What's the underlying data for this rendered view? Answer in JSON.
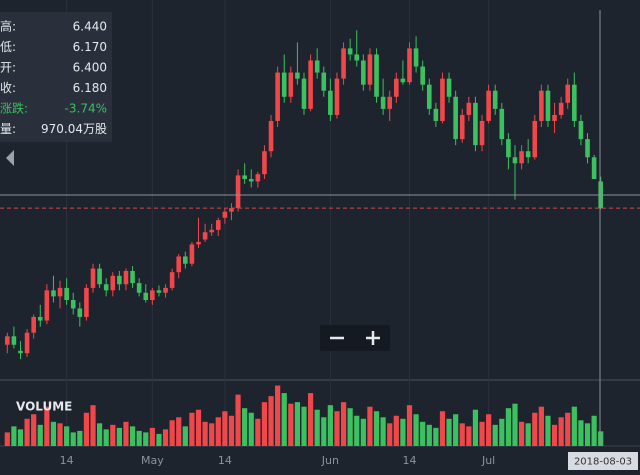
{
  "chart_data": {
    "type": "candlestick",
    "up_color": "#f0474a",
    "down_color": "#3bc15f",
    "ylim": [
      4.8,
      7.9
    ],
    "y2lim": [
      0,
      4300
    ],
    "volume_label": "VOLUME",
    "cursor_date": "2018-08-03",
    "categories": [
      null,
      null,
      null,
      null,
      null,
      null,
      null,
      null,
      null,
      "14",
      null,
      null,
      null,
      null,
      null,
      null,
      null,
      null,
      null,
      null,
      null,
      null,
      "May",
      null,
      null,
      null,
      null,
      null,
      null,
      null,
      null,
      null,
      null,
      "14",
      null,
      null,
      null,
      null,
      null,
      null,
      null,
      null,
      null,
      null,
      null,
      null,
      null,
      null,
      null,
      "Jun",
      null,
      null,
      null,
      null,
      null,
      null,
      null,
      null,
      null,
      null,
      null,
      "14",
      null,
      null,
      null,
      null,
      null,
      null,
      null,
      null,
      null,
      null,
      null,
      "Jul",
      null,
      null,
      null,
      null,
      null,
      null,
      null,
      null,
      null,
      null,
      null,
      null,
      null,
      null,
      null,
      null,
      null
    ],
    "open": [
      5.05,
      5.12,
      5.0,
      4.98,
      5.15,
      5.28,
      5.25,
      5.5,
      5.45,
      5.52,
      5.42,
      5.35,
      5.28,
      5.52,
      5.68,
      5.55,
      5.5,
      5.62,
      5.55,
      5.66,
      5.56,
      5.48,
      5.42,
      5.5,
      5.48,
      5.52,
      5.65,
      5.78,
      5.72,
      5.88,
      5.92,
      5.98,
      6.0,
      6.1,
      6.15,
      6.18,
      6.45,
      6.42,
      6.4,
      6.46,
      6.65,
      6.9,
      7.3,
      7.1,
      7.3,
      7.25,
      7.0,
      7.4,
      7.3,
      7.15,
      6.95,
      7.25,
      7.5,
      7.45,
      7.4,
      7.2,
      7.45,
      7.1,
      7.0,
      7.1,
      7.25,
      7.22,
      7.5,
      7.35,
      7.2,
      7.0,
      6.9,
      7.25,
      7.1,
      6.75,
      6.95,
      7.05,
      6.7,
      6.9,
      7.15,
      7.0,
      6.75,
      6.6,
      6.55,
      6.65,
      6.6,
      6.9,
      7.15,
      6.9,
      6.95,
      7.05,
      7.2,
      6.9,
      6.75,
      6.6,
      6.4
    ],
    "high": [
      5.15,
      5.2,
      5.08,
      5.18,
      5.3,
      5.38,
      5.55,
      5.62,
      5.58,
      5.6,
      5.48,
      5.4,
      5.55,
      5.72,
      5.72,
      5.6,
      5.65,
      5.66,
      5.68,
      5.7,
      5.6,
      5.55,
      5.52,
      5.54,
      5.55,
      5.68,
      5.8,
      5.82,
      5.9,
      6.1,
      6.05,
      6.05,
      6.1,
      6.18,
      6.22,
      6.5,
      6.55,
      6.5,
      6.48,
      6.7,
      6.95,
      7.35,
      7.45,
      7.35,
      7.55,
      7.3,
      7.45,
      7.5,
      7.35,
      7.25,
      7.3,
      7.55,
      7.58,
      7.65,
      7.45,
      7.5,
      7.5,
      7.25,
      7.15,
      7.3,
      7.4,
      7.55,
      7.6,
      7.4,
      7.25,
      7.05,
      7.3,
      7.3,
      7.15,
      7.0,
      7.1,
      7.1,
      6.95,
      7.2,
      7.2,
      7.05,
      6.8,
      6.7,
      6.7,
      6.75,
      6.95,
      7.2,
      7.2,
      7.05,
      7.1,
      7.25,
      7.3,
      6.95,
      6.8,
      6.62,
      6.44
    ],
    "low": [
      4.98,
      5.02,
      4.93,
      4.95,
      5.1,
      5.2,
      5.22,
      5.4,
      5.35,
      5.38,
      5.3,
      5.2,
      5.25,
      5.48,
      5.52,
      5.45,
      5.45,
      5.5,
      5.5,
      5.52,
      5.45,
      5.4,
      5.38,
      5.45,
      5.44,
      5.5,
      5.6,
      5.68,
      5.7,
      5.85,
      5.9,
      5.95,
      5.95,
      6.05,
      6.08,
      6.15,
      6.38,
      6.35,
      6.35,
      6.42,
      6.6,
      6.85,
      7.05,
      7.05,
      7.2,
      6.95,
      6.98,
      7.25,
      7.1,
      6.9,
      6.92,
      7.2,
      7.4,
      7.35,
      7.15,
      7.15,
      7.05,
      6.95,
      6.9,
      7.05,
      7.2,
      7.2,
      7.3,
      7.15,
      6.95,
      6.85,
      6.88,
      7.05,
      6.7,
      6.72,
      6.9,
      6.65,
      6.65,
      6.88,
      6.95,
      6.7,
      6.5,
      6.25,
      6.5,
      6.55,
      6.58,
      6.85,
      6.85,
      6.8,
      6.92,
      7.0,
      6.85,
      6.7,
      6.55,
      6.42,
      6.17
    ],
    "close": [
      5.12,
      5.05,
      4.98,
      5.15,
      5.28,
      5.25,
      5.5,
      5.45,
      5.52,
      5.42,
      5.35,
      5.28,
      5.52,
      5.68,
      5.55,
      5.5,
      5.62,
      5.55,
      5.66,
      5.56,
      5.48,
      5.42,
      5.5,
      5.48,
      5.52,
      5.65,
      5.78,
      5.72,
      5.88,
      5.9,
      5.98,
      6.0,
      6.08,
      6.15,
      6.18,
      6.45,
      6.42,
      6.4,
      6.46,
      6.65,
      6.9,
      7.3,
      7.1,
      7.3,
      7.25,
      7.0,
      7.4,
      7.3,
      7.15,
      6.95,
      7.25,
      7.5,
      7.45,
      7.4,
      7.2,
      7.45,
      7.1,
      7.0,
      7.1,
      7.25,
      7.22,
      7.5,
      7.35,
      7.2,
      7.0,
      6.9,
      7.25,
      7.1,
      6.75,
      6.95,
      7.05,
      6.7,
      6.9,
      7.15,
      7.0,
      6.75,
      6.6,
      6.55,
      6.65,
      6.6,
      6.9,
      7.15,
      6.9,
      6.95,
      7.05,
      7.2,
      6.9,
      6.75,
      6.6,
      6.42,
      6.18
    ],
    "volume": [
      900,
      1300,
      1100,
      1800,
      2100,
      1400,
      2600,
      1600,
      1500,
      1300,
      900,
      1000,
      2200,
      2700,
      1500,
      1100,
      1400,
      1200,
      1600,
      1300,
      1000,
      900,
      1200,
      800,
      1100,
      1700,
      1900,
      1300,
      2200,
      2400,
      1600,
      1500,
      1900,
      2300,
      2000,
      3400,
      2500,
      2200,
      1800,
      2900,
      3300,
      4000,
      3500,
      2800,
      2900,
      2600,
      3500,
      2400,
      1900,
      2700,
      2300,
      2900,
      2500,
      2000,
      1800,
      2600,
      2300,
      1900,
      1500,
      2000,
      1800,
      2700,
      2100,
      1600,
      1400,
      1200,
      2300,
      1800,
      2100,
      1500,
      1300,
      2400,
      1600,
      2100,
      1400,
      1800,
      2500,
      2800,
      1600,
      1500,
      2200,
      2600,
      2000,
      1400,
      1900,
      2200,
      2600,
      1700,
      1500,
      2000,
      970
    ]
  },
  "info": [
    {
      "label": "高:",
      "value": "6.440"
    },
    {
      "label": "低:",
      "value": "6.170"
    },
    {
      "label": "开:",
      "value": "6.400"
    },
    {
      "label": "收:",
      "value": "6.180"
    },
    {
      "label": "涨跌:",
      "value": "-3.74%"
    },
    {
      "label": "量:",
      "value": "970.04万股"
    }
  ]
}
